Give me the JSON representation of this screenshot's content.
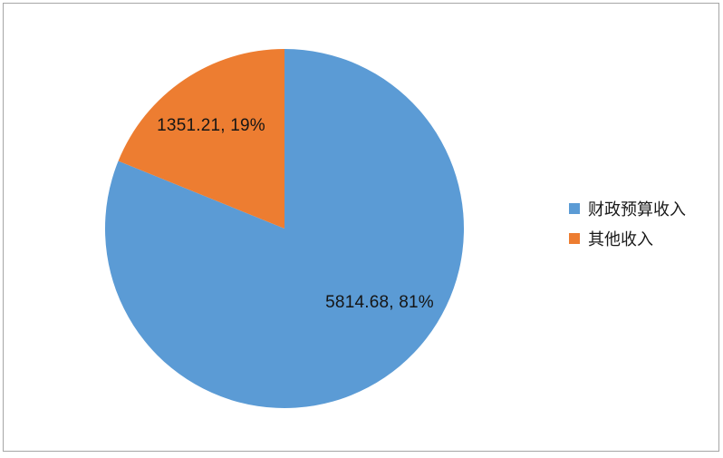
{
  "chart_data": {
    "type": "pie",
    "title": "",
    "series": [
      {
        "name": "财政预算收入",
        "value": 5814.68,
        "percent": 81,
        "color": "#5B9BD5",
        "label_text": "5814.68, 81%"
      },
      {
        "name": "其他收入",
        "value": 1351.21,
        "percent": 19,
        "color": "#ED7D31",
        "label_text": "1351.21, 19%"
      }
    ],
    "start_angle_deg": 0,
    "direction": "clockwise",
    "legend_position": "right",
    "background": "#ffffff",
    "frame_color": "#a6a6a6",
    "label_color": "#151515"
  },
  "labels": {
    "budget_slice": "5814.68, 81%",
    "other_slice": "1351.21, 19%"
  },
  "legend": {
    "items": [
      {
        "label": "财政预算收入",
        "color": "#5B9BD5"
      },
      {
        "label": "其他收入",
        "color": "#ED7D31"
      }
    ]
  }
}
